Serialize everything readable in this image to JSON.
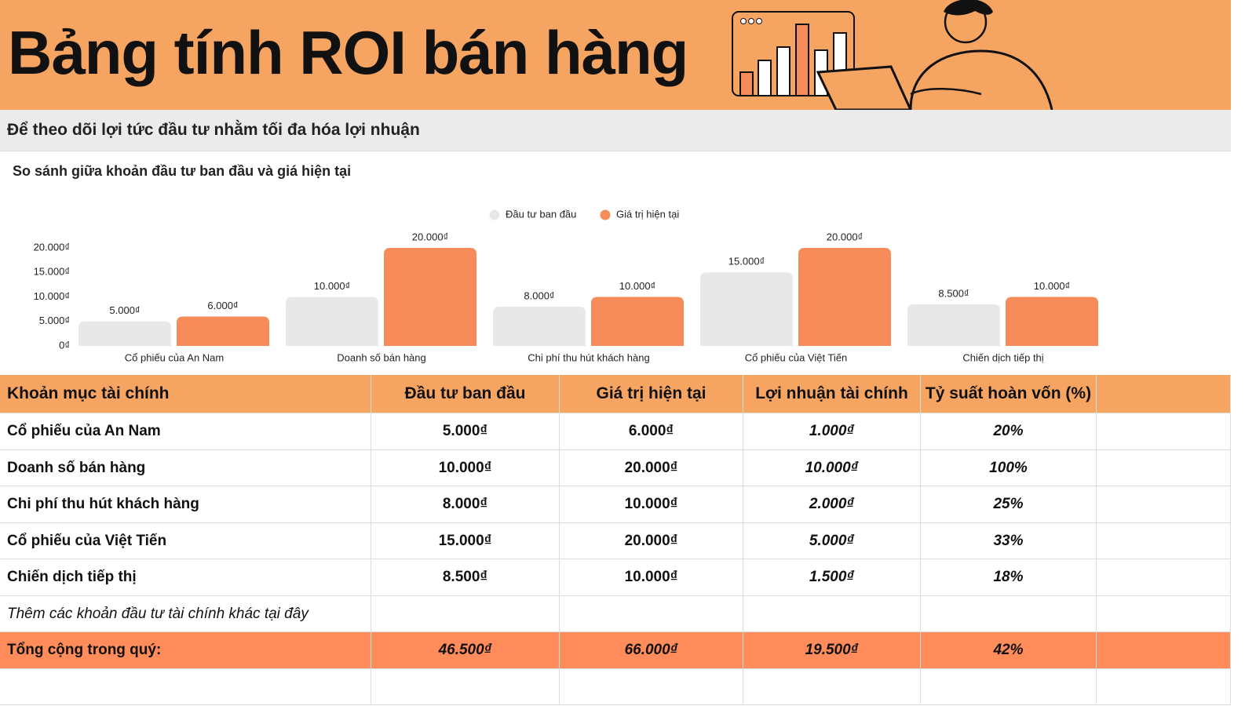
{
  "header": {
    "title": "Bảng tính ROI bán hàng",
    "subtitle": "Để theo dõi lợi tức đầu tư nhằm tối đa hóa lợi nhuận"
  },
  "chart_data": {
    "type": "bar",
    "title": "So sánh giữa khoản đầu tư ban đầu và giá hiện tại",
    "categories": [
      "Cổ phiếu của An Nam",
      "Doanh số bán hàng",
      "Chi phí thu hút khách hàng",
      "Cổ phiếu của Việt Tiến",
      "Chiến dịch tiếp thị"
    ],
    "series": [
      {
        "name": "Đầu tư ban đầu",
        "color": "#e8e8e8",
        "values": [
          5000,
          10000,
          8000,
          15000,
          8500
        ],
        "value_labels": [
          "5.000₫",
          "10.000₫",
          "8.000₫",
          "15.000₫",
          "8.500₫"
        ]
      },
      {
        "name": "Giá trị hiện tại",
        "color": "#f58c5a",
        "values": [
          6000,
          20000,
          10000,
          20000,
          10000
        ],
        "value_labels": [
          "6.000₫",
          "20.000₫",
          "10.000₫",
          "20.000₫",
          "10.000₫"
        ]
      }
    ],
    "ylim": [
      0,
      20000
    ],
    "yticks": [
      {
        "value": 0,
        "label": "0₫"
      },
      {
        "value": 5000,
        "label": "5.000₫"
      },
      {
        "value": 10000,
        "label": "10.000₫"
      },
      {
        "value": 15000,
        "label": "15.000₫"
      },
      {
        "value": 20000,
        "label": "20.000₫"
      }
    ],
    "grid": false,
    "legend": "top"
  },
  "table": {
    "header": [
      "Khoản mục tài chính",
      "Đầu tư ban đầu",
      "Giá trị hiện tại",
      "Lợi nhuận tài chính",
      "Tỷ suất hoàn vốn (%)"
    ],
    "rows": [
      [
        "Cổ phiếu của An Nam",
        "5.000₫",
        "6.000₫",
        "1.000₫",
        "20%"
      ],
      [
        "Doanh số bán hàng",
        "10.000₫",
        "20.000₫",
        "10.000₫",
        "100%"
      ],
      [
        "Chi phí thu hút khách hàng",
        "8.000₫",
        "10.000₫",
        "2.000₫",
        "25%"
      ],
      [
        "Cổ phiếu của Việt Tiến",
        "15.000₫",
        "20.000₫",
        "5.000₫",
        "33%"
      ],
      [
        "Chiến dịch tiếp thị",
        "8.500₫",
        "10.000₫",
        "1.500₫",
        "18%"
      ]
    ],
    "note": "Thêm các khoản đầu tư tài chính khác tại đây",
    "total": [
      "Tổng cộng trong quý:",
      "46.500₫",
      "66.000₫",
      "19.500₫",
      "42%"
    ]
  }
}
